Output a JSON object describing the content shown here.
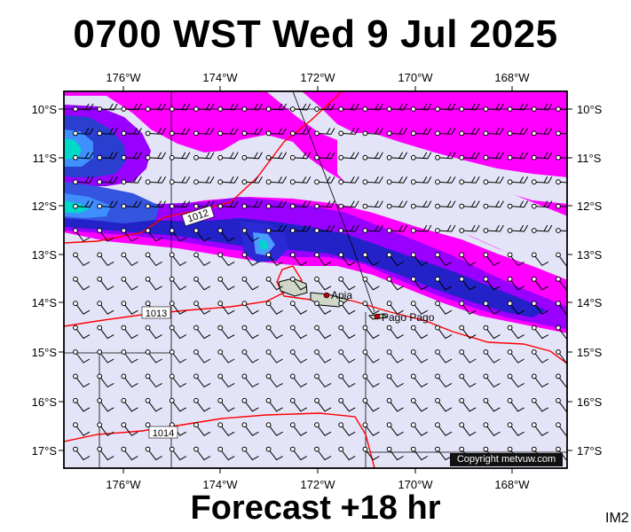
{
  "header": {
    "title": "0700 WST Wed 9 Jul 2025"
  },
  "footer": {
    "forecast": "Forecast +18 hr",
    "image_id": "IM2"
  },
  "map": {
    "lon_labels": [
      "176°W",
      "174°W",
      "172°W",
      "170°W",
      "168°W"
    ],
    "lat_labels": [
      "10°S",
      "11°S",
      "12°S",
      "13°S",
      "14°S",
      "15°S",
      "16°S",
      "17°S"
    ],
    "isobar_labels": [
      "1012",
      "1013",
      "1014"
    ],
    "places": [
      "Apia",
      "Pago Pago"
    ],
    "copyright": "Copyright metvuw.com"
  },
  "colors": {
    "frame": "#000000",
    "background": "#e4e4f8",
    "wind_magenta": "#ff00ff",
    "wind_purple": "#9900ff",
    "wind_blue": "#2020c0",
    "wind_lightblue": "#2f7fff",
    "wind_cyan": "#00d8c8",
    "isobar": "#ff0000"
  }
}
